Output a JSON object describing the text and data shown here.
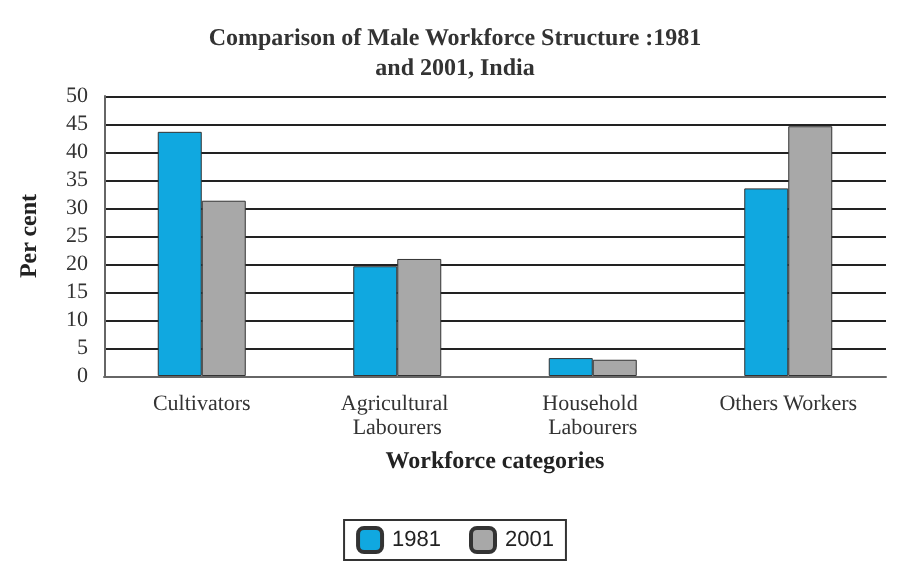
{
  "chart_data": {
    "type": "bar",
    "title": "Comparison of Male Workforce Structure :1981\nand 2001, India",
    "xlabel": "Workforce categories",
    "ylabel": "Per cent",
    "categories": [
      "Cultivators",
      "Agricultural Labourers",
      "Household Labourers",
      "Others Workers"
    ],
    "series": [
      {
        "name": "1981",
        "color": "#10a8e0",
        "values": [
          43.6,
          19.6,
          3.2,
          33.5
        ]
      },
      {
        "name": "2001",
        "color": "#a8a8a8",
        "values": [
          31.3,
          20.9,
          2.9,
          44.6
        ]
      }
    ],
    "ylim": [
      0,
      50
    ],
    "yticks": [
      0,
      5,
      10,
      15,
      20,
      25,
      30,
      35,
      40,
      45,
      50
    ],
    "grid": "y",
    "legend": "bottom"
  }
}
